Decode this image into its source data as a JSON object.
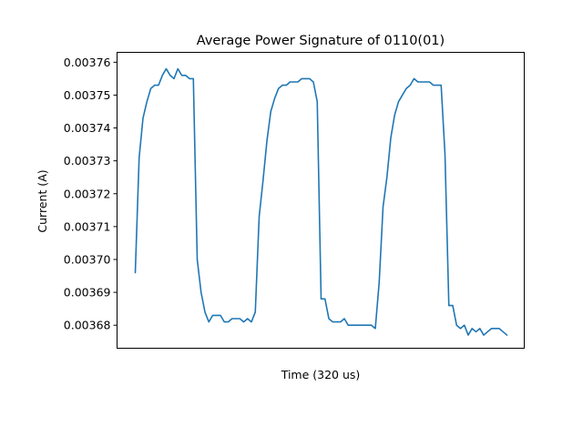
{
  "chart_data": {
    "type": "line",
    "title": "Average Power Signature of 0110(01)",
    "xlabel": "Time (320 us)",
    "ylabel": "Current (A)",
    "xticks_visible": false,
    "ylim": [
      0.003673,
      0.003763
    ],
    "yticks": [
      0.00368,
      0.00369,
      0.0037,
      0.00371,
      0.00372,
      0.00373,
      0.00374,
      0.00375,
      0.00376
    ],
    "ytick_labels": [
      "0.00368",
      "0.00369",
      "0.00370",
      "0.00371",
      "0.00372",
      "0.00373",
      "0.00374",
      "0.00375",
      "0.00376"
    ],
    "grid": false,
    "series": [
      {
        "color": "#1f77b4",
        "values": [
          0.003696,
          0.003731,
          0.003743,
          0.003748,
          0.003752,
          0.003753,
          0.003753,
          0.003756,
          0.003758,
          0.003756,
          0.003755,
          0.003758,
          0.003756,
          0.003756,
          0.003755,
          0.003755,
          0.0037,
          0.00369,
          0.003684,
          0.003681,
          0.003683,
          0.003683,
          0.003683,
          0.003681,
          0.003681,
          0.003682,
          0.003682,
          0.003682,
          0.003681,
          0.003682,
          0.003681,
          0.003684,
          0.003713,
          0.003724,
          0.003736,
          0.003745,
          0.003749,
          0.003752,
          0.003753,
          0.003753,
          0.003754,
          0.003754,
          0.003754,
          0.003755,
          0.003755,
          0.003755,
          0.003754,
          0.003748,
          0.003688,
          0.003688,
          0.003682,
          0.003681,
          0.003681,
          0.003681,
          0.003682,
          0.00368,
          0.00368,
          0.00368,
          0.00368,
          0.00368,
          0.00368,
          0.00368,
          0.003679,
          0.003693,
          0.003716,
          0.003725,
          0.003737,
          0.003744,
          0.003748,
          0.00375,
          0.003752,
          0.003753,
          0.003755,
          0.003754,
          0.003754,
          0.003754,
          0.003754,
          0.003753,
          0.003753,
          0.003753,
          0.003732,
          0.003686,
          0.003686,
          0.00368,
          0.003679,
          0.00368,
          0.003677,
          0.003679,
          0.003678,
          0.003679,
          0.003677,
          0.003678,
          0.003679,
          0.003679,
          0.003679,
          0.003678,
          0.003677
        ]
      }
    ]
  }
}
